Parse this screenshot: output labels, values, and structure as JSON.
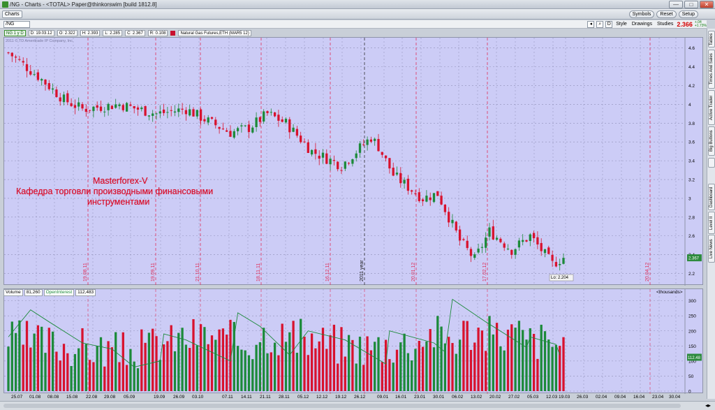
{
  "window": {
    "title": "/NG - Charts - <TOTAL> Paper@thinkorswim [build 1812.8]",
    "min": "—",
    "max": "□",
    "close": "✕"
  },
  "topbar": {
    "charts_label": "Charts",
    "buttons": [
      "Symbols",
      "Reset",
      "Setup"
    ]
  },
  "toolbar": {
    "symbol": "/NG",
    "last_price": "2.366",
    "change_top": "+.04",
    "change_bottom": "+1.73%",
    "d_label": "D",
    "style_label": "Style",
    "drawings_label": "Drawings",
    "studies_label": "Studies"
  },
  "info": {
    "tag": "NG 1 y D",
    "date": "D: 19.03.12",
    "open": "O: 2.322",
    "high": "H: 2.393",
    "low": "L: 2.285",
    "close": "C: 2.367",
    "range": "R: 0.108",
    "name": "Natural Gas Futures,ETH (MAR5 12)"
  },
  "copyright": "2011 © TD Ameritrade IP Company, Inc.",
  "annotation": {
    "line1": "Masterforex-V",
    "line2": "Кафедра торговли производными финансовыми",
    "line3": "инструментами"
  },
  "volume_header": {
    "volume_label": "Volume",
    "volume_value": "81,260",
    "oi_label": "OpenInterest",
    "oi_value": "112,483",
    "units": "<thousands>"
  },
  "price_axis": [
    "4.6",
    "4.4",
    "4.2",
    "4",
    "3.8",
    "3.6",
    "3.4",
    "3.2",
    "3",
    "2.8",
    "2.6",
    "2.4",
    "2.2"
  ],
  "price_marker": "2.367",
  "low_label": "Lo: 2.204",
  "volume_axis": [
    "300",
    "250",
    "200",
    "150",
    "100",
    "50",
    "0"
  ],
  "volume_marker": "112.48",
  "expiry_labels": [
    "19.08.11",
    "19.09.11",
    "21.10.11",
    "18.11.11",
    "16.12.11",
    "2011 year",
    "20.01.12",
    "17.02.12",
    "20.04.12"
  ],
  "x_labels": [
    "25.07",
    "01.08",
    "08.08",
    "15.08",
    "22.08",
    "29.08",
    "05.09",
    "19.09",
    "26.09",
    "03.10",
    "07.11",
    "14.11",
    "21.11",
    "28.11",
    "05.12",
    "12.12",
    "19.12",
    "26.12",
    "09.01",
    "16.01",
    "23.01",
    "30.01",
    "06.02",
    "13.02",
    "20.02",
    "27.02",
    "05.03",
    "12.03",
    "19.03",
    "26.03",
    "02.04",
    "09.04",
    "16.04",
    "23.04",
    "30.04"
  ],
  "side_tabs": [
    "Live News",
    "Level II",
    "Dashboard",
    "",
    "Big Buttons",
    "Active Trader",
    "Times And Sales",
    "Tables"
  ],
  "colors": {
    "up": "#1c8a3a",
    "down": "#d8122e",
    "bg": "#ccccf6",
    "expiry": "#e0305a"
  },
  "chart_data": {
    "type": "candlestick",
    "title": "Natural Gas Futures,ETH (MAR5 12)",
    "ylim": [
      2.1,
      4.65
    ],
    "volume_ylim": [
      0,
      320
    ],
    "close_path_x": [
      0,
      8,
      15,
      20,
      30,
      40,
      48,
      55,
      60,
      65,
      70,
      75,
      82,
      90,
      98,
      100,
      104,
      108,
      112,
      116,
      122,
      126,
      130,
      136,
      141,
      147,
      150
    ],
    "close_path_y": [
      4.55,
      4.3,
      4.05,
      3.95,
      4.0,
      3.9,
      3.95,
      3.8,
      3.7,
      3.75,
      3.9,
      3.8,
      3.5,
      3.35,
      3.65,
      3.55,
      3.25,
      3.12,
      3.0,
      3.05,
      2.55,
      2.35,
      2.65,
      2.45,
      2.6,
      2.3,
      2.37
    ],
    "volume_profile": [
      0.55,
      0.5,
      0.45,
      0.4,
      0.35,
      0.3,
      0.35,
      0.5,
      0.6,
      0.65,
      0.55,
      0.5,
      0.7,
      0.65,
      0.55,
      0.5,
      0.45,
      0.4,
      0.45,
      0.5,
      0.7,
      0.6,
      0.75,
      0.65,
      0.7,
      0.55,
      0.5,
      0.45
    ],
    "oi_points": [
      [
        0,
        180
      ],
      [
        6,
        270
      ],
      [
        11,
        230
      ],
      [
        20,
        160
      ],
      [
        28,
        140
      ],
      [
        34,
        80
      ],
      [
        41,
        100
      ],
      [
        42,
        190
      ],
      [
        48,
        170
      ],
      [
        60,
        100
      ],
      [
        62,
        260
      ],
      [
        68,
        215
      ],
      [
        76,
        120
      ],
      [
        81,
        200
      ],
      [
        91,
        170
      ],
      [
        102,
        90
      ],
      [
        103,
        200
      ],
      [
        115,
        160
      ],
      [
        118,
        130
      ],
      [
        120,
        305
      ],
      [
        129,
        230
      ],
      [
        140,
        145
      ],
      [
        141,
        180
      ],
      [
        148,
        155
      ],
      [
        149,
        120
      ]
    ]
  }
}
